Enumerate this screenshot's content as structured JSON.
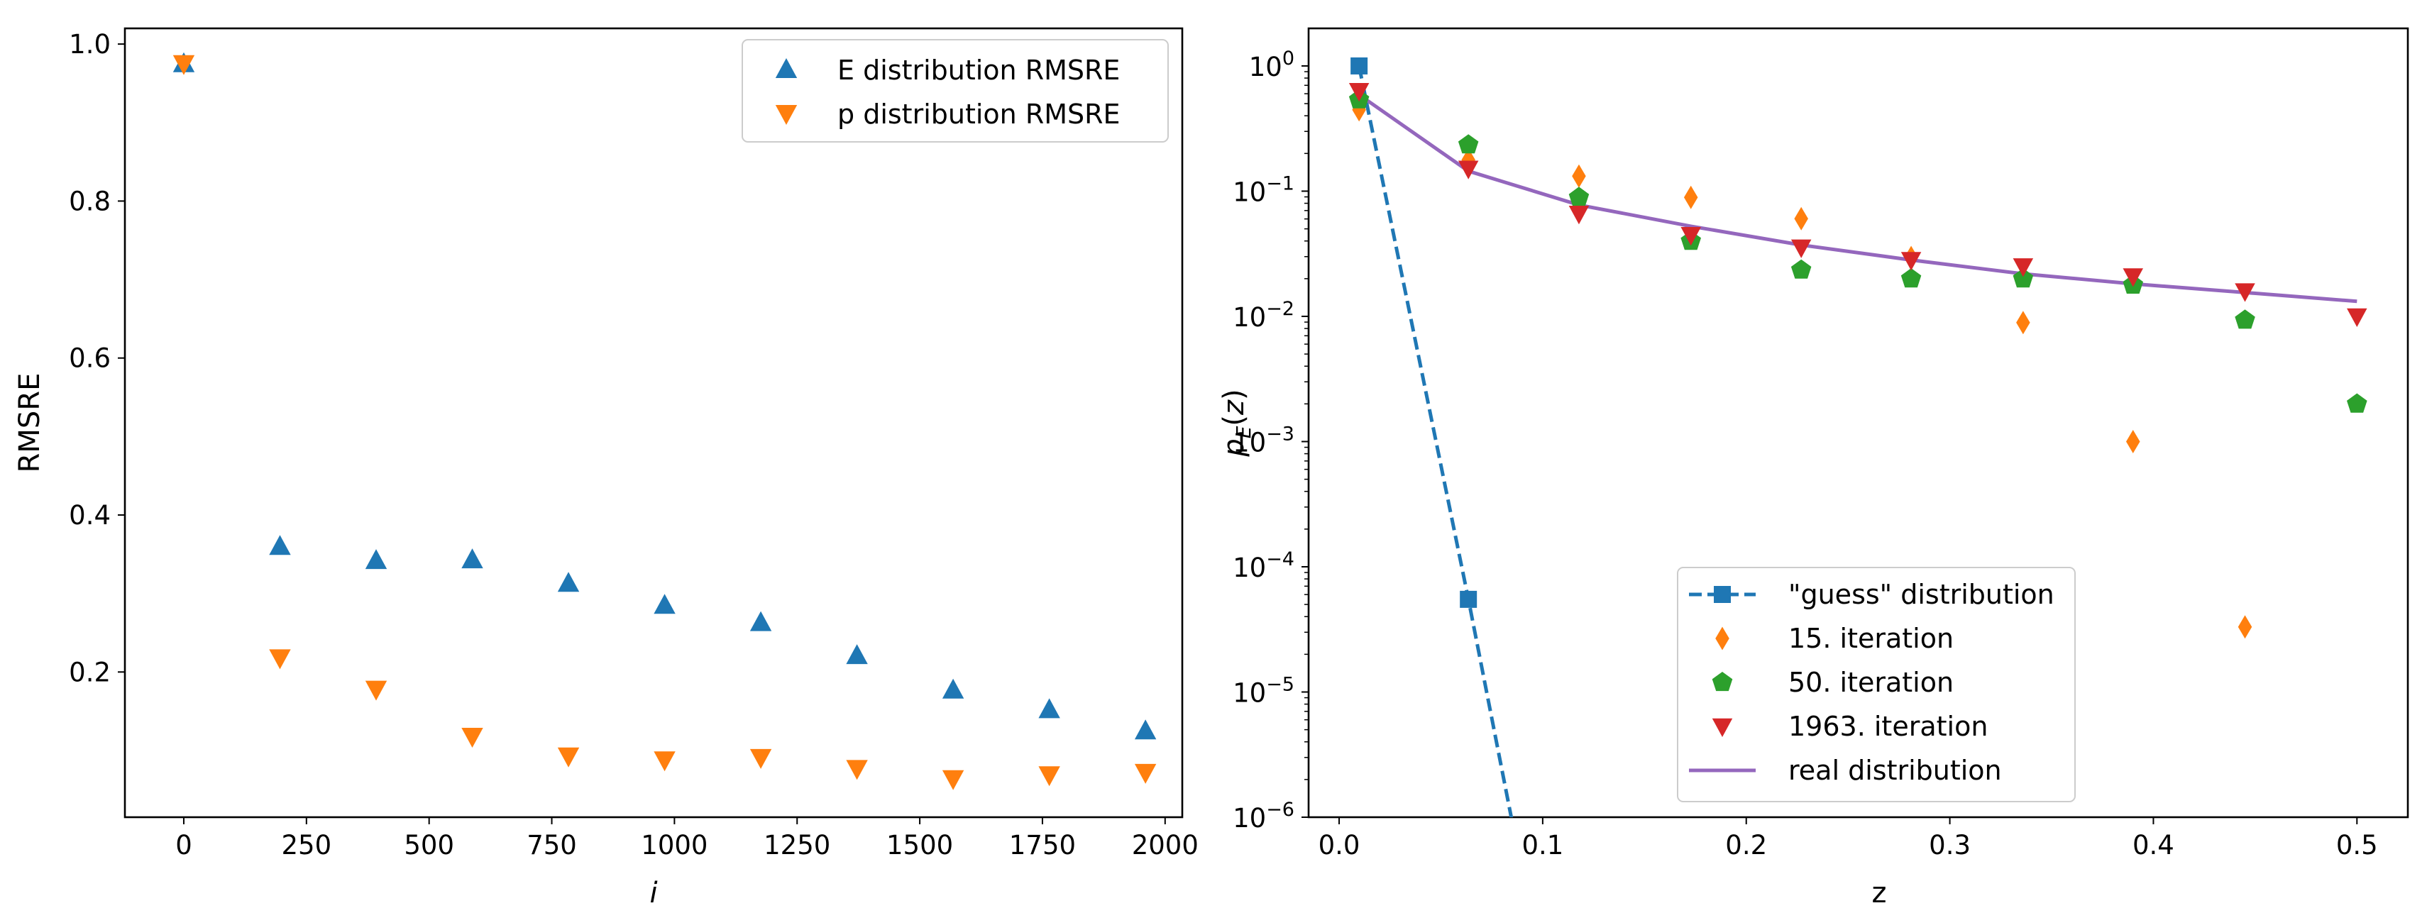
{
  "colors": {
    "blue": "#1f77b4",
    "orange": "#ff7f0e",
    "green": "#2ca02c",
    "red": "#d62728",
    "purple": "#9467bd"
  },
  "chart_data": [
    {
      "type": "scatter",
      "title": "",
      "xlabel": "i",
      "ylabel": "RMSRE",
      "xlim": [
        -120,
        2035
      ],
      "ylim": [
        0.015,
        1.02
      ],
      "xticks": [
        0,
        250,
        500,
        750,
        1000,
        1250,
        1500,
        1750,
        2000
      ],
      "xtick_labels": [
        "0",
        "250",
        "500",
        "750",
        "1000",
        "1250",
        "1500",
        "1750",
        "2000"
      ],
      "yticks": [
        0.2,
        0.4,
        0.6,
        0.8,
        1.0
      ],
      "ytick_labels": [
        "0.2",
        "0.4",
        "0.6",
        "0.8",
        "1.0"
      ],
      "legend_position": "top-right",
      "series": [
        {
          "name": "E distribution RMSRE",
          "marker": "triangle-up",
          "color": "#1f77b4",
          "x": [
            0,
            196,
            392,
            588,
            784,
            980,
            1176,
            1372,
            1568,
            1764,
            1960
          ],
          "y": [
            0.975,
            0.36,
            0.342,
            0.343,
            0.313,
            0.285,
            0.263,
            0.221,
            0.177,
            0.152,
            0.125
          ]
        },
        {
          "name": "p distribution RMSRE",
          "marker": "triangle-down",
          "color": "#ff7f0e",
          "x": [
            0,
            196,
            392,
            588,
            784,
            980,
            1176,
            1372,
            1568,
            1764,
            1960
          ],
          "y": [
            0.975,
            0.218,
            0.178,
            0.118,
            0.093,
            0.088,
            0.091,
            0.077,
            0.064,
            0.069,
            0.072
          ]
        }
      ]
    },
    {
      "type": "scatter",
      "title": "",
      "xlabel": "z",
      "ylabel": "p_E(z)",
      "yscale": "log",
      "xlim": [
        -0.015,
        0.525
      ],
      "ylim_log10": [
        -6,
        0.3
      ],
      "xticks": [
        0.0,
        0.1,
        0.2,
        0.3,
        0.4,
        0.5
      ],
      "xtick_labels": [
        "0.0",
        "0.1",
        "0.2",
        "0.3",
        "0.4",
        "0.5"
      ],
      "yticks_log10": [
        0,
        -1,
        -2,
        -3,
        -4,
        -5,
        -6
      ],
      "ytick_exponents": [
        "0",
        "−1",
        "−2",
        "−3",
        "−4",
        "−5",
        "−6"
      ],
      "ytick_base": "10",
      "legend_position": "bottom-center",
      "series": [
        {
          "name": "\"guess\" distribution",
          "marker": "square",
          "line": "dashed",
          "color": "#1f77b4",
          "x": [
            0.0098,
            0.0635
          ],
          "y_log10": [
            0,
            -4.26
          ],
          "line_x": [
            0.0098,
            0.0635,
            0.0882
          ],
          "line_y_log10": [
            0,
            -4.26,
            -6.3
          ]
        },
        {
          "name": "15. iteration",
          "marker": "diamond",
          "color": "#ff7f0e",
          "x": [
            0.0098,
            0.0635,
            0.1178,
            0.1728,
            0.227,
            0.281,
            0.336,
            0.39,
            0.445
          ],
          "y_log10": [
            -0.35,
            -0.75,
            -0.88,
            -1.05,
            -1.22,
            -1.53,
            -2.05,
            -3.0,
            -4.48
          ]
        },
        {
          "name": "50. iteration",
          "marker": "pentagon",
          "color": "#2ca02c",
          "x": [
            0.0098,
            0.0635,
            0.1178,
            0.1728,
            0.227,
            0.281,
            0.336,
            0.39,
            0.445,
            0.5
          ],
          "y_log10": [
            -0.27,
            -0.63,
            -1.05,
            -1.4,
            -1.63,
            -1.7,
            -1.7,
            -1.75,
            -2.03,
            -2.7
          ]
        },
        {
          "name": "1963. iteration",
          "marker": "triangle-down",
          "color": "#d62728",
          "x": [
            0.0098,
            0.0635,
            0.1178,
            0.1728,
            0.227,
            0.281,
            0.336,
            0.39,
            0.445,
            0.5
          ],
          "y_log10": [
            -0.2,
            -0.82,
            -1.18,
            -1.35,
            -1.45,
            -1.55,
            -1.6,
            -1.68,
            -1.8,
            -2.0
          ]
        },
        {
          "name": "real distribution",
          "marker": "none",
          "line": "solid",
          "color": "#9467bd",
          "x": [
            0.0098,
            0.0635,
            0.1178,
            0.1728,
            0.227,
            0.281,
            0.336,
            0.39,
            0.445,
            0.5
          ],
          "y_log10": [
            -0.23,
            -0.84,
            -1.11,
            -1.28,
            -1.43,
            -1.55,
            -1.66,
            -1.74,
            -1.81,
            -1.88
          ]
        }
      ]
    }
  ]
}
